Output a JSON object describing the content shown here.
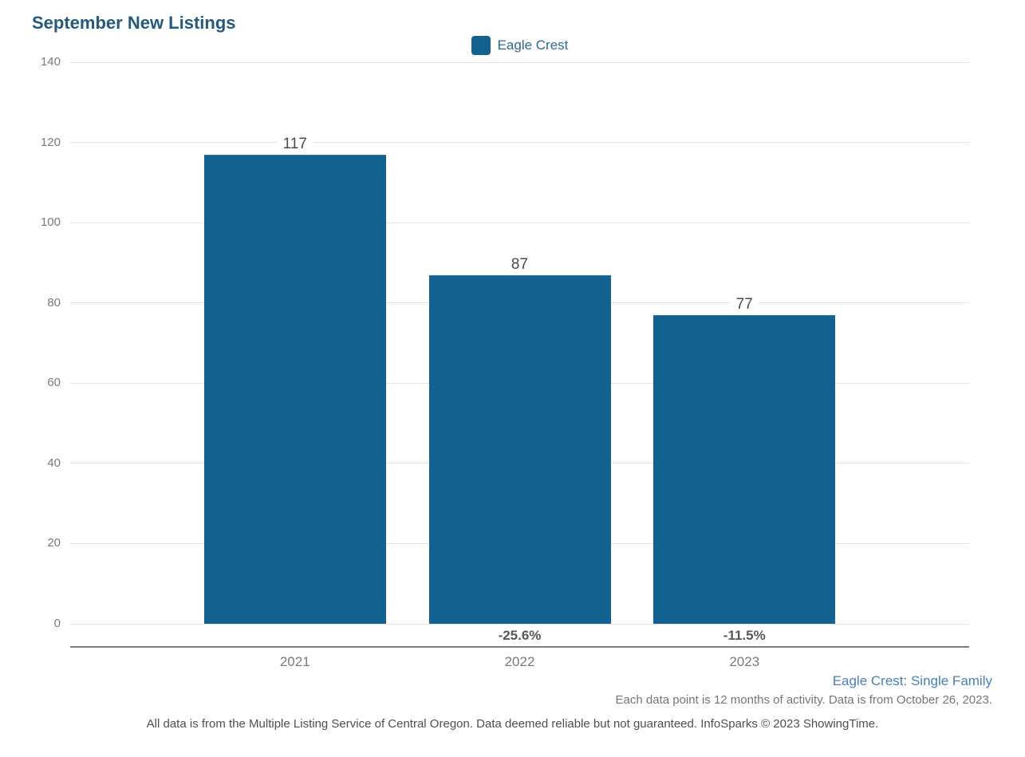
{
  "page": {
    "title": "September New Listings",
    "series_footnote": "Eagle Crest: Single Family",
    "data_footnote": "Each data point is 12 months of activity. Data is from October 26, 2023.",
    "disclaimer": "All data is from the Multiple Listing Service of Central Oregon. Data deemed reliable but not guaranteed. InfoSparks © 2023 ShowingTime."
  },
  "legend": {
    "label": "Eagle Crest",
    "swatch_color": "#136190"
  },
  "chart_data": {
    "type": "bar",
    "title": "September New Listings",
    "categories": [
      "2021",
      "2022",
      "2023"
    ],
    "series": [
      {
        "name": "Eagle Crest",
        "values": [
          117,
          87,
          77
        ],
        "color": "#136190"
      }
    ],
    "bar_value_labels": [
      "117",
      "87",
      "77"
    ],
    "pct_change_labels": [
      null,
      "-25.6%",
      "-11.5%"
    ],
    "y_ticks": [
      0,
      20,
      40,
      60,
      80,
      100,
      120,
      140
    ],
    "ylim": [
      0,
      140
    ],
    "xlabel": "",
    "ylabel": "",
    "grid": true,
    "legend_position": "top-center",
    "colors": {
      "bar": "#136190",
      "gridline": "#e3e3e3",
      "axis_line": "#7e7e7e",
      "value_label": "#4a4a4a",
      "pct_label": "#58585a",
      "tick_label": "#7a7a7a",
      "title": "#255a7c"
    }
  }
}
